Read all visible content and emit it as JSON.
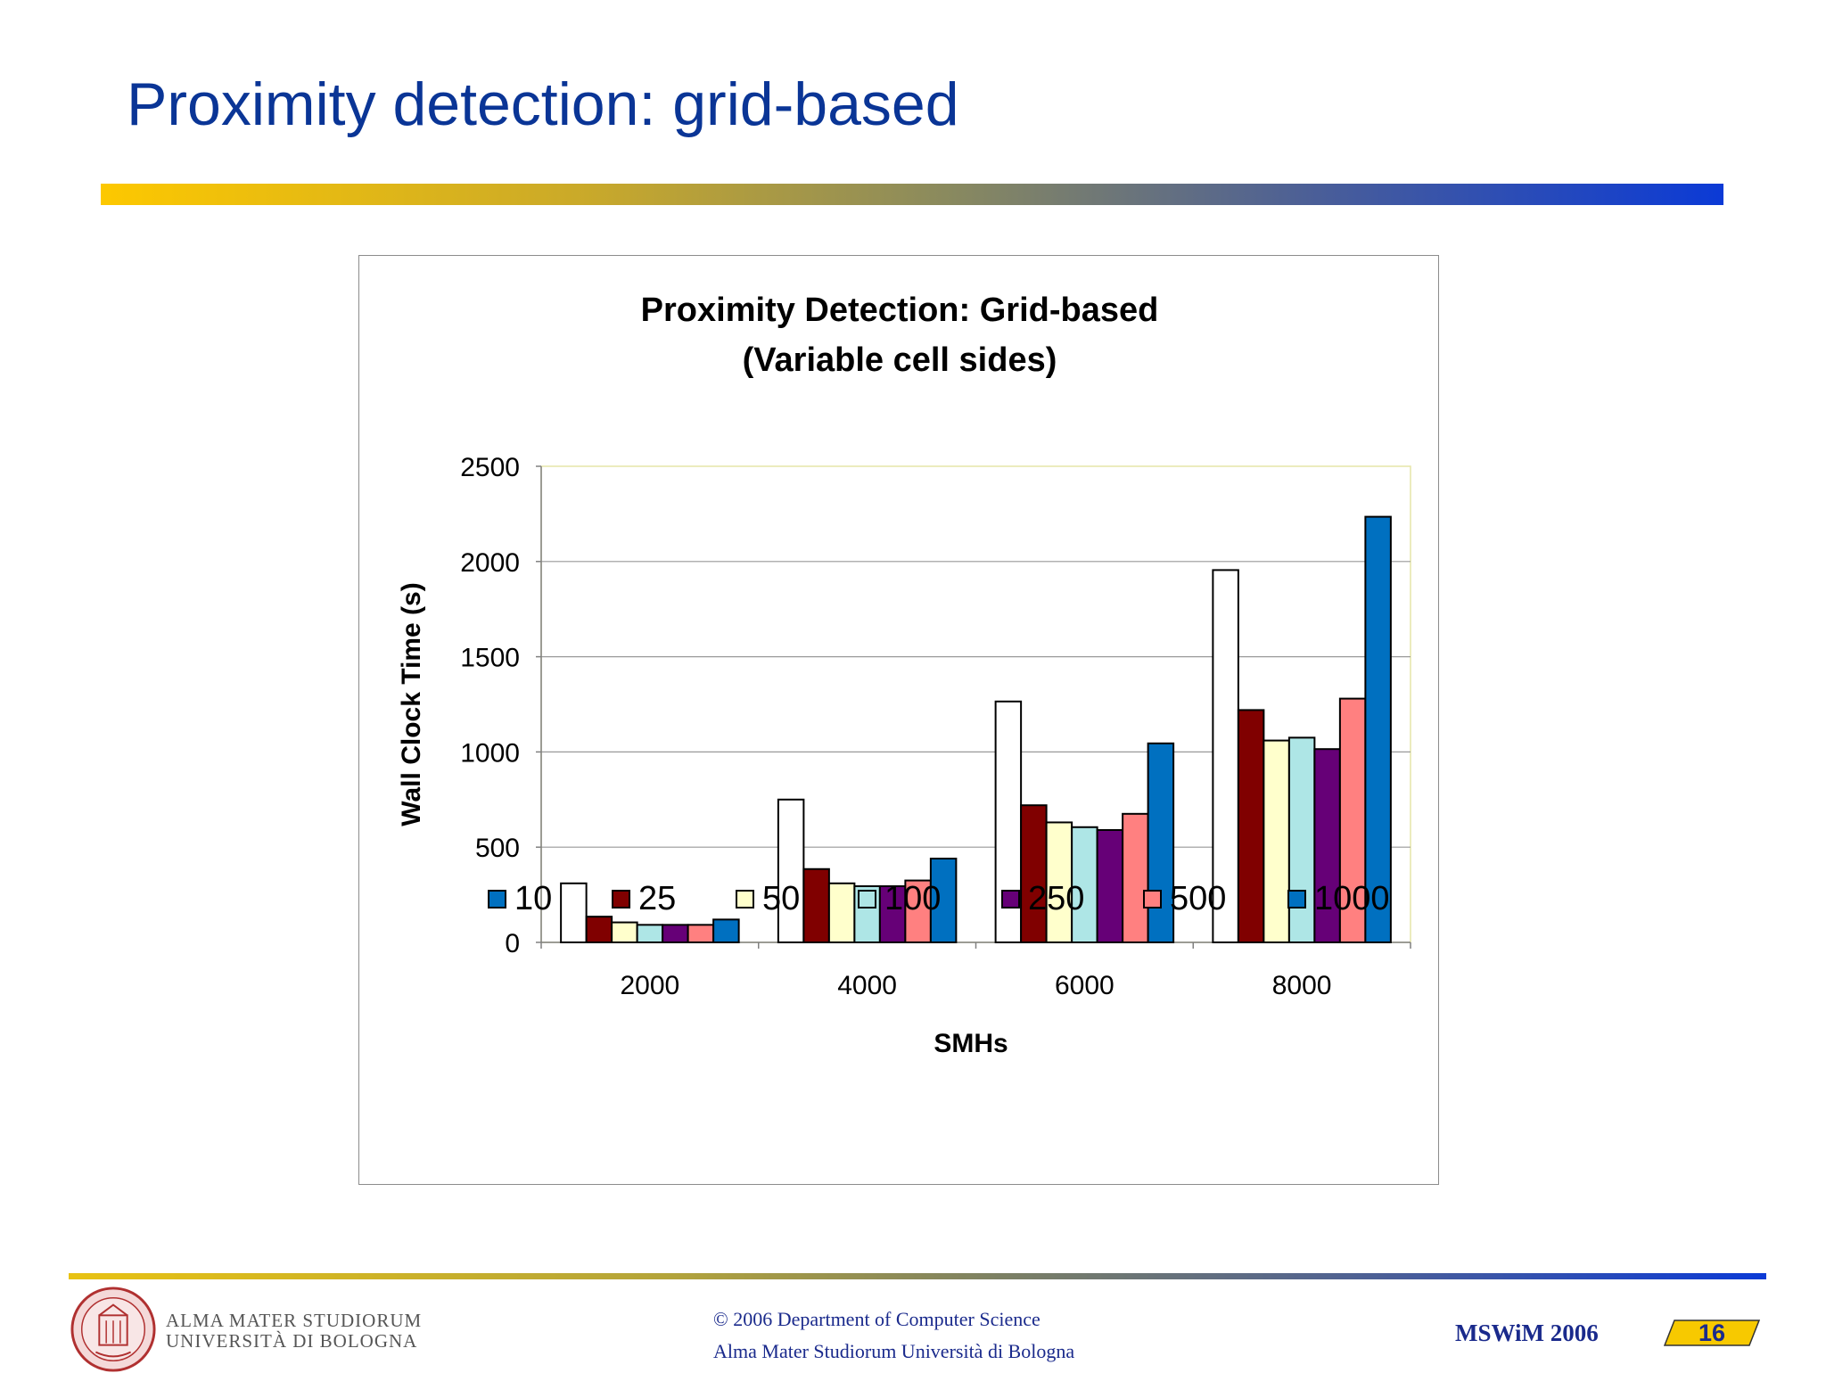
{
  "slide": {
    "title": "Proximity detection: grid-based",
    "logo_line1": "ALMA MATER STUDIORUM",
    "logo_line2": "UNIVERSITÀ DI BOLOGNA",
    "footer_line1": "© 2006 Department of Computer Science",
    "footer_line2": "Alma Mater Studiorum Università di Bologna",
    "conference": "MSWiM 2006",
    "page_number": "16"
  },
  "colors": {
    "title": "#0a3596",
    "series": [
      "#ffffff",
      "#800000",
      "#ffffcc",
      "#aee6e6",
      "#660077",
      "#ff8080",
      "#0070c0"
    ],
    "legend_first_swatch": "#0070c0"
  },
  "chart_data": {
    "type": "bar",
    "title": [
      "Proximity Detection: Grid-based",
      "(Variable cell sides)"
    ],
    "xlabel": "SMHs",
    "ylabel": "Wall Clock Time (s)",
    "ylim": [
      0,
      2500
    ],
    "yticks": [
      0,
      500,
      1000,
      1500,
      2000,
      2500
    ],
    "categories": [
      "2000",
      "4000",
      "6000",
      "8000"
    ],
    "grid": true,
    "legend_position": "bottom",
    "series": [
      {
        "name": "10",
        "values": [
          310,
          750,
          1265,
          1955
        ]
      },
      {
        "name": "25",
        "values": [
          135,
          385,
          720,
          1220
        ]
      },
      {
        "name": "50",
        "values": [
          105,
          310,
          630,
          1060
        ]
      },
      {
        "name": "100",
        "values": [
          92,
          295,
          605,
          1075
        ]
      },
      {
        "name": "250",
        "values": [
          92,
          295,
          590,
          1015
        ]
      },
      {
        "name": "500",
        "values": [
          92,
          325,
          675,
          1280
        ]
      },
      {
        "name": "1000",
        "values": [
          120,
          440,
          1045,
          2235
        ]
      }
    ]
  }
}
